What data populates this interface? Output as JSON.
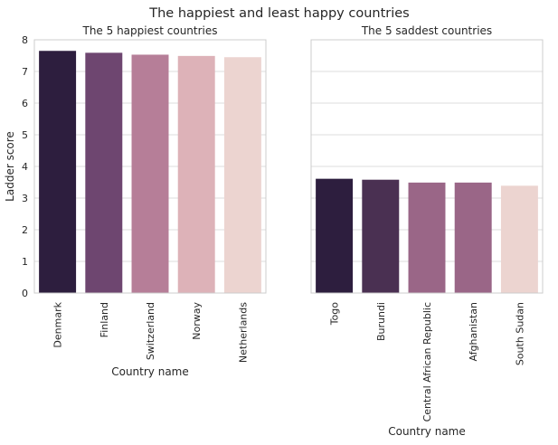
{
  "figure": {
    "title": "The happiest and least happy countries"
  },
  "chart_data": [
    {
      "type": "bar",
      "title": "The 5 happiest countries",
      "categories": [
        "Denmark",
        "Finland",
        "Switzerland",
        "Norway",
        "Netherlands"
      ],
      "values": [
        7.65,
        7.59,
        7.53,
        7.49,
        7.45
      ],
      "colors": [
        "#2d1e3e",
        "#6e4670",
        "#b67e98",
        "#ddb2b8",
        "#ecd4d0"
      ],
      "xlabel": "Country name",
      "ylabel": "Ladder score",
      "ylim": [
        0,
        8
      ],
      "yticks": [
        "0",
        "1",
        "2",
        "3",
        "4",
        "5",
        "6",
        "7",
        "8"
      ],
      "grid": true
    },
    {
      "type": "bar",
      "title": "The 5 saddest countries",
      "categories": [
        "Togo",
        "Burundi",
        "Central African Republic",
        "Afghanistan",
        "South Sudan"
      ],
      "values": [
        3.61,
        3.58,
        3.49,
        3.49,
        3.39
      ],
      "colors": [
        "#2d1e3e",
        "#4a3052",
        "#9a6687",
        "#9a6687",
        "#ecd4d0"
      ],
      "xlabel": "Country name",
      "ylabel": "",
      "ylim": [
        0,
        8
      ],
      "yticks": [],
      "grid": true,
      "sharey": true
    }
  ]
}
